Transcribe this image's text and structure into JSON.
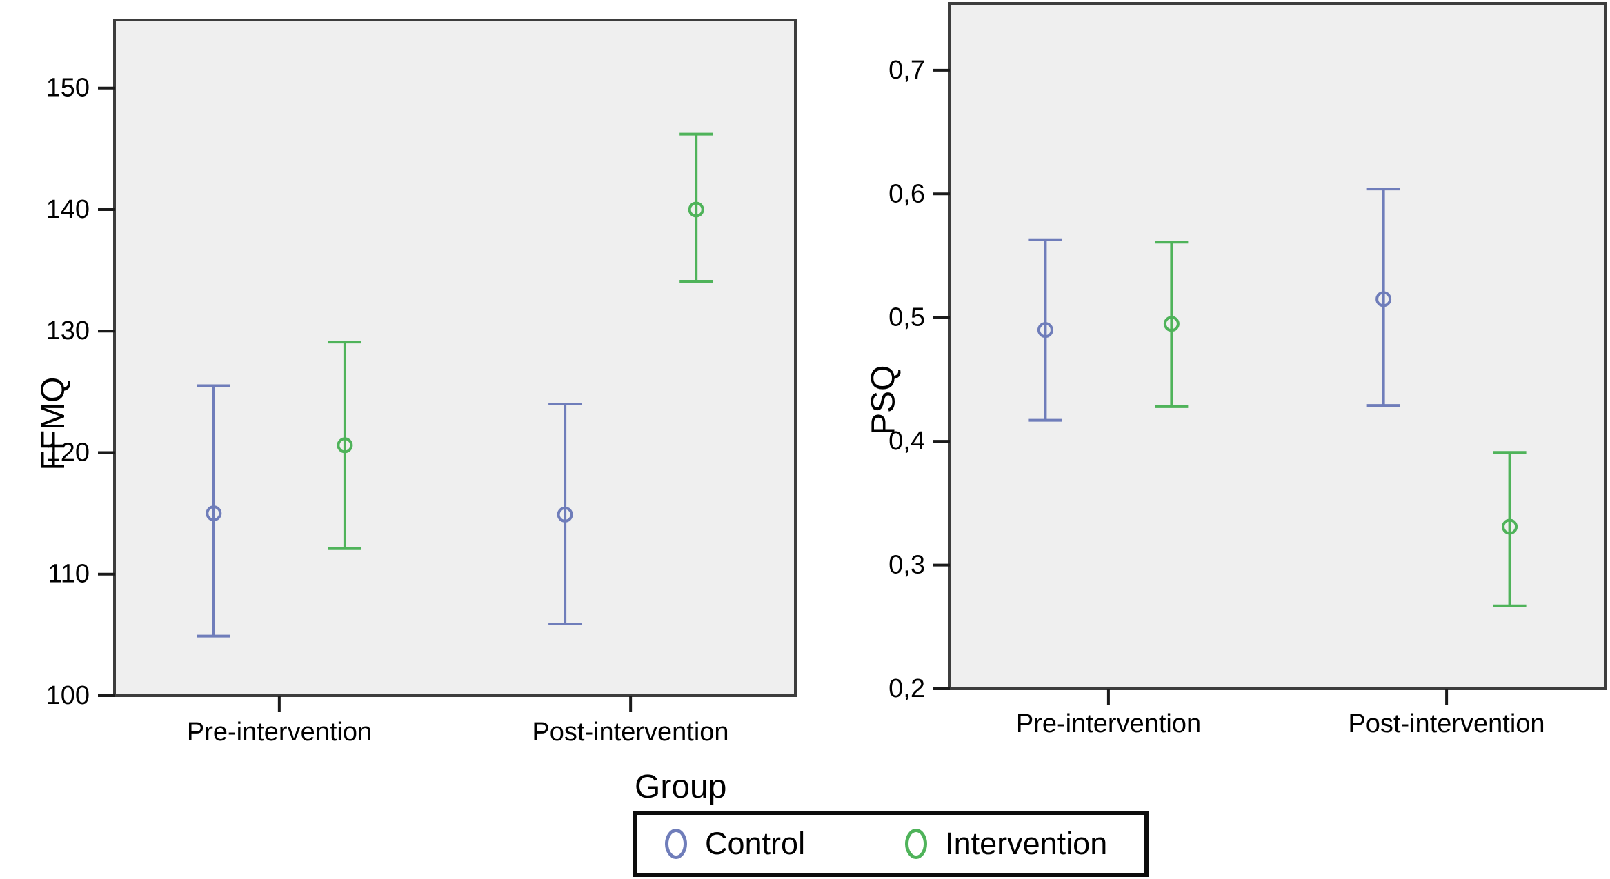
{
  "figure": {
    "background": "#ffffff"
  },
  "colors": {
    "control": "#6F7DBA",
    "intervention": "#4FB35A",
    "plot_background": "#EFEFEF",
    "plot_border": "#3D3D3D",
    "tick": "#1A1A1A",
    "text": "#000000",
    "legend_border": "#0D0D0D"
  },
  "legend": {
    "title": "Group",
    "entries": [
      {
        "label": "Control",
        "color": "#6F7DBA",
        "marker": "open-circle"
      },
      {
        "label": "Intervention",
        "color": "#4FB35A",
        "marker": "open-circle"
      }
    ]
  },
  "chart_data": [
    {
      "type": "errorbar",
      "title": "",
      "xlabel": "",
      "ylabel": "FFMQ",
      "categories": [
        "Pre-intervention",
        "Post-intervention"
      ],
      "ylim": [
        100,
        155.6
      ],
      "yticks": [
        100,
        110,
        120,
        130,
        140,
        150
      ],
      "ytick_labels": [
        "100",
        "110",
        "120",
        "130",
        "140",
        "150"
      ],
      "grid": false,
      "legend_position": "below-figure",
      "series": [
        {
          "name": "Control",
          "color": "#6F7DBA",
          "means": [
            115.0,
            114.9
          ],
          "ci_low": [
            104.9,
            105.9
          ],
          "ci_high": [
            125.5,
            124.0
          ]
        },
        {
          "name": "Intervention",
          "color": "#4FB35A",
          "means": [
            120.6,
            140.0
          ],
          "ci_low": [
            112.1,
            134.1
          ],
          "ci_high": [
            129.1,
            146.2
          ]
        }
      ]
    },
    {
      "type": "errorbar",
      "title": "",
      "xlabel": "",
      "ylabel": "PSQ",
      "categories": [
        "Pre-intervention",
        "Post-intervention"
      ],
      "ylim": [
        0.2,
        0.754
      ],
      "yticks": [
        0.2,
        0.3,
        0.4,
        0.5,
        0.6,
        0.7
      ],
      "ytick_labels": [
        "0,2",
        "0,3",
        "0,4",
        "0,5",
        "0,6",
        "0,7"
      ],
      "grid": false,
      "legend_position": "below-figure",
      "series": [
        {
          "name": "Control",
          "color": "#6F7DBA",
          "means": [
            0.49,
            0.515
          ],
          "ci_low": [
            0.417,
            0.429
          ],
          "ci_high": [
            0.563,
            0.604
          ]
        },
        {
          "name": "Intervention",
          "color": "#4FB35A",
          "means": [
            0.495,
            0.331
          ],
          "ci_low": [
            0.428,
            0.267
          ],
          "ci_high": [
            0.561,
            0.391
          ]
        }
      ]
    }
  ]
}
